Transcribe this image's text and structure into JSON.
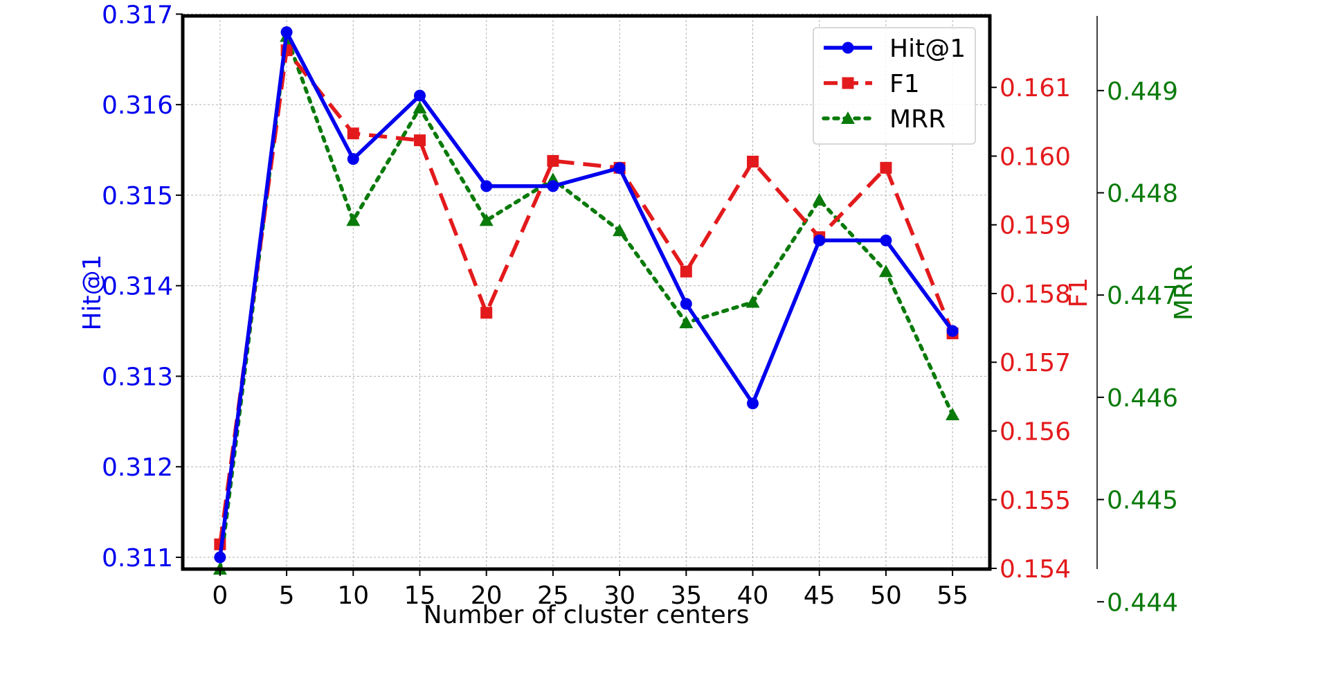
{
  "chart_data": {
    "type": "line",
    "xlabel": "Number of cluster centers",
    "x": [
      0,
      5,
      10,
      15,
      20,
      25,
      30,
      35,
      40,
      45,
      50,
      55
    ],
    "x_ticks": [
      "0",
      "5",
      "10",
      "15",
      "20",
      "25",
      "30",
      "35",
      "40",
      "45",
      "50",
      "55"
    ],
    "xlim": [
      -2.8,
      57.8
    ],
    "grid": true,
    "legend_position": "top-right",
    "series": [
      {
        "name": "Hit@1",
        "axis": "left",
        "color": "#0000ee",
        "style": "solid",
        "marker": "circle",
        "values": [
          0.311,
          0.3168,
          0.3154,
          0.3161,
          0.3151,
          0.3151,
          0.3153,
          0.3138,
          0.3127,
          0.3145,
          0.3145,
          0.3135
        ]
      },
      {
        "name": "F1",
        "axis": "right",
        "color": "#e31a1c",
        "style": "dashed",
        "marker": "square",
        "values": [
          0.15435,
          0.16154,
          0.16033,
          0.16023,
          0.15772,
          0.15993,
          0.15983,
          0.15832,
          0.15992,
          0.15882,
          0.15983,
          0.15742
        ]
      },
      {
        "name": "MRR",
        "axis": "right2",
        "color": "#0a7a0a",
        "style": "dotted",
        "marker": "triangle",
        "values": [
          0.44432,
          0.44953,
          0.44773,
          0.44883,
          0.44773,
          0.44813,
          0.44763,
          0.44673,
          0.44693,
          0.44793,
          0.44723,
          0.44583
        ]
      }
    ],
    "axes": {
      "left": {
        "label": "Hit@1",
        "color": "#0000ee",
        "ylim": [
          0.31087,
          0.31698
        ],
        "ticks": [
          "0.311",
          "0.312",
          "0.313",
          "0.314",
          "0.315",
          "0.316",
          "0.317"
        ],
        "tick_values": [
          0.311,
          0.312,
          0.313,
          0.314,
          0.315,
          0.316,
          0.317
        ]
      },
      "right": {
        "label": "F1",
        "color": "#e31a1c",
        "ylim": [
          0.15399,
          0.16204
        ],
        "ticks": [
          "0.154",
          "0.155",
          "0.156",
          "0.157",
          "0.158",
          "0.159",
          "0.160",
          "0.161"
        ],
        "tick_values": [
          0.154,
          0.155,
          0.156,
          0.157,
          0.158,
          0.159,
          0.16,
          0.161
        ]
      },
      "right2": {
        "label": "MRR",
        "color": "#0a7a0a",
        "ylim": [
          0.44432,
          0.44973
        ],
        "ticks": [
          "0.444",
          "0.445",
          "0.446",
          "0.447",
          "0.448",
          "0.449"
        ],
        "tick_values": [
          0.444,
          0.445,
          0.446,
          0.447,
          0.448,
          0.449
        ]
      }
    }
  }
}
